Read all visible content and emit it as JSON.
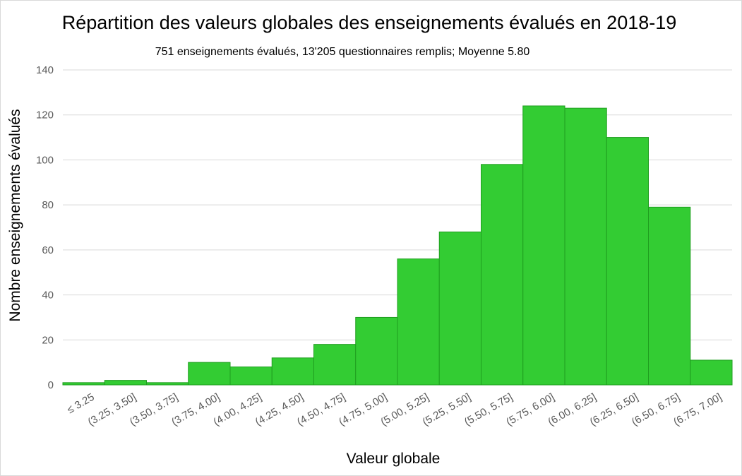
{
  "chart_data": {
    "type": "bar",
    "title": "Répartition des valeurs globales des enseignements évalués en 2018-19",
    "subtitle": "751 enseignements évalués, 13'205 questionnaires remplis; Moyenne 5.80",
    "xlabel": "Valeur globale",
    "ylabel": "Nombre enseignements évalués",
    "categories": [
      "≤ 3.25",
      "(3.25, 3.50]",
      "(3.50, 3.75]",
      "(3.75, 4.00]",
      "(4.00, 4.25]",
      "(4.25, 4.50]",
      "(4.50, 4.75]",
      "(4.75, 5.00]",
      "(5.00, 5.25]",
      "(5.25, 5.50]",
      "(5.50, 5.75]",
      "(5.75, 6.00]",
      "(6.00, 6.25]",
      "(6.25, 6.50]",
      "(6.50, 6.75]",
      "(6.75, 7.00]"
    ],
    "values": [
      1,
      2,
      1,
      10,
      8,
      12,
      18,
      30,
      56,
      68,
      98,
      124,
      123,
      110,
      79,
      11
    ],
    "ylim": [
      0,
      140
    ],
    "yticks": [
      0,
      20,
      40,
      60,
      80,
      100,
      120,
      140
    ],
    "grid": true,
    "legend": "none",
    "bar_color": "#33cc33"
  }
}
